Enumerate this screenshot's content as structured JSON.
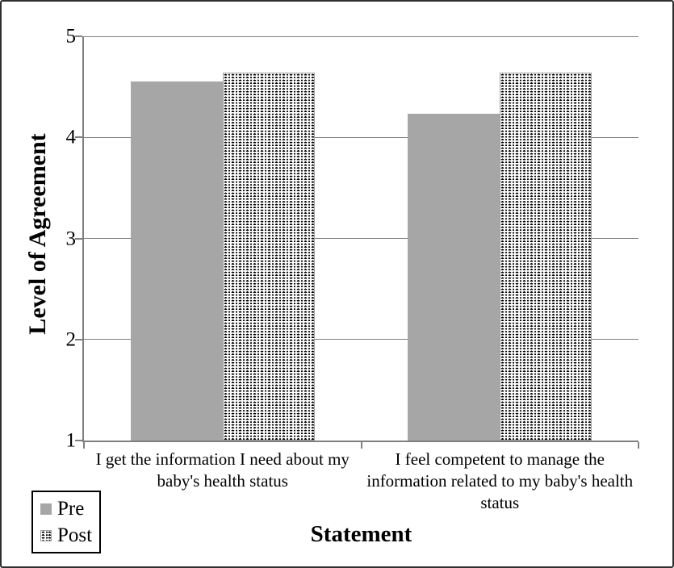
{
  "chart_data": {
    "type": "bar",
    "title": "",
    "xlabel": "Statement",
    "ylabel": "Level of Agreement",
    "ylim": [
      1,
      5
    ],
    "yticks": [
      5,
      4,
      3,
      2,
      1
    ],
    "grid": true,
    "legend_position": "bottom-left",
    "categories": [
      "I get the information I need about my baby's health status",
      "I feel competent to manage the information related to my baby's health status"
    ],
    "series": [
      {
        "name": "Pre",
        "fill": "solid-gray",
        "values": [
          4.55,
          4.23
        ]
      },
      {
        "name": "Post",
        "fill": "dotted-pattern",
        "values": [
          4.64,
          4.64
        ]
      }
    ],
    "colors": {
      "pre_fill": "#a6a6a6",
      "post_background": "#ffffff",
      "post_dots": "#000000",
      "post_border": "#a3a3a3",
      "axis": "#7f7f7f",
      "text": "#000000",
      "frame_border": "#2f2f2f"
    }
  }
}
